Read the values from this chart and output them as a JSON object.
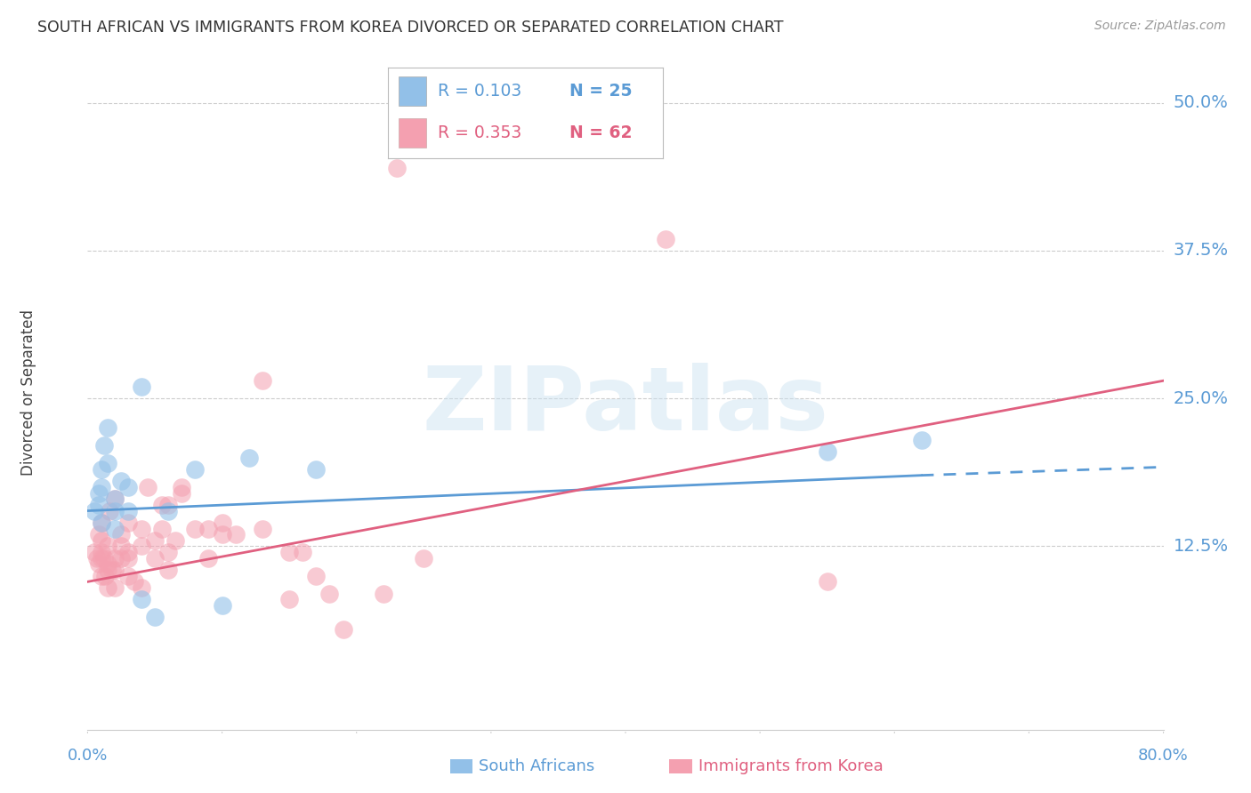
{
  "title": "SOUTH AFRICAN VS IMMIGRANTS FROM KOREA DIVORCED OR SEPARATED CORRELATION CHART",
  "source": "Source: ZipAtlas.com",
  "ylabel": "Divorced or Separated",
  "legend_R1": "R = 0.103",
  "legend_N1": "N = 25",
  "legend_R2": "R = 0.353",
  "legend_N2": "N = 62",
  "legend_label1": "South Africans",
  "legend_label2": "Immigrants from Korea",
  "color_sa": "#92C0E8",
  "color_korea": "#F4A0B0",
  "color_sa_line": "#5B9BD5",
  "color_korea_line": "#E06080",
  "color_text": "#5B9BD5",
  "color_grid": "#cccccc",
  "watermark_text": "ZIPatlas",
  "xmin": 0.0,
  "xmax": 0.8,
  "ymin": -0.03,
  "ymax": 0.54,
  "ytick_vals": [
    0.125,
    0.25,
    0.375,
    0.5
  ],
  "ytick_labels": [
    "12.5%",
    "25.0%",
    "37.5%",
    "50.0%"
  ],
  "sa_line_start_x": 0.0,
  "sa_line_start_y": 0.155,
  "sa_line_solid_end_x": 0.62,
  "sa_line_solid_end_y": 0.185,
  "sa_line_dash_end_x": 0.8,
  "sa_line_dash_end_y": 0.192,
  "korea_line_start_x": 0.0,
  "korea_line_start_y": 0.095,
  "korea_line_end_x": 0.8,
  "korea_line_end_y": 0.265,
  "sa_x": [
    0.005,
    0.008,
    0.008,
    0.01,
    0.01,
    0.01,
    0.012,
    0.015,
    0.015,
    0.02,
    0.02,
    0.02,
    0.025,
    0.03,
    0.03,
    0.04,
    0.04,
    0.05,
    0.06,
    0.08,
    0.1,
    0.12,
    0.17,
    0.55,
    0.62
  ],
  "sa_y": [
    0.155,
    0.16,
    0.17,
    0.19,
    0.175,
    0.145,
    0.21,
    0.225,
    0.195,
    0.165,
    0.155,
    0.14,
    0.18,
    0.175,
    0.155,
    0.26,
    0.08,
    0.065,
    0.155,
    0.19,
    0.075,
    0.2,
    0.19,
    0.205,
    0.215
  ],
  "korea_x": [
    0.005,
    0.007,
    0.008,
    0.008,
    0.01,
    0.01,
    0.01,
    0.01,
    0.01,
    0.012,
    0.013,
    0.015,
    0.015,
    0.015,
    0.015,
    0.016,
    0.018,
    0.02,
    0.02,
    0.02,
    0.02,
    0.025,
    0.025,
    0.025,
    0.03,
    0.03,
    0.03,
    0.03,
    0.035,
    0.04,
    0.04,
    0.04,
    0.045,
    0.05,
    0.05,
    0.055,
    0.055,
    0.06,
    0.06,
    0.06,
    0.065,
    0.07,
    0.07,
    0.08,
    0.09,
    0.09,
    0.1,
    0.1,
    0.11,
    0.13,
    0.15,
    0.15,
    0.16,
    0.17,
    0.18,
    0.19,
    0.22,
    0.25,
    0.43,
    0.55,
    0.13,
    0.23
  ],
  "korea_y": [
    0.12,
    0.115,
    0.135,
    0.11,
    0.145,
    0.12,
    0.115,
    0.1,
    0.13,
    0.115,
    0.1,
    0.09,
    0.105,
    0.125,
    0.11,
    0.155,
    0.105,
    0.165,
    0.115,
    0.105,
    0.09,
    0.135,
    0.115,
    0.125,
    0.145,
    0.115,
    0.12,
    0.1,
    0.095,
    0.14,
    0.125,
    0.09,
    0.175,
    0.13,
    0.115,
    0.16,
    0.14,
    0.105,
    0.16,
    0.12,
    0.13,
    0.17,
    0.175,
    0.14,
    0.14,
    0.115,
    0.145,
    0.135,
    0.135,
    0.14,
    0.12,
    0.08,
    0.12,
    0.1,
    0.085,
    0.055,
    0.085,
    0.115,
    0.385,
    0.095,
    0.265,
    0.445
  ]
}
